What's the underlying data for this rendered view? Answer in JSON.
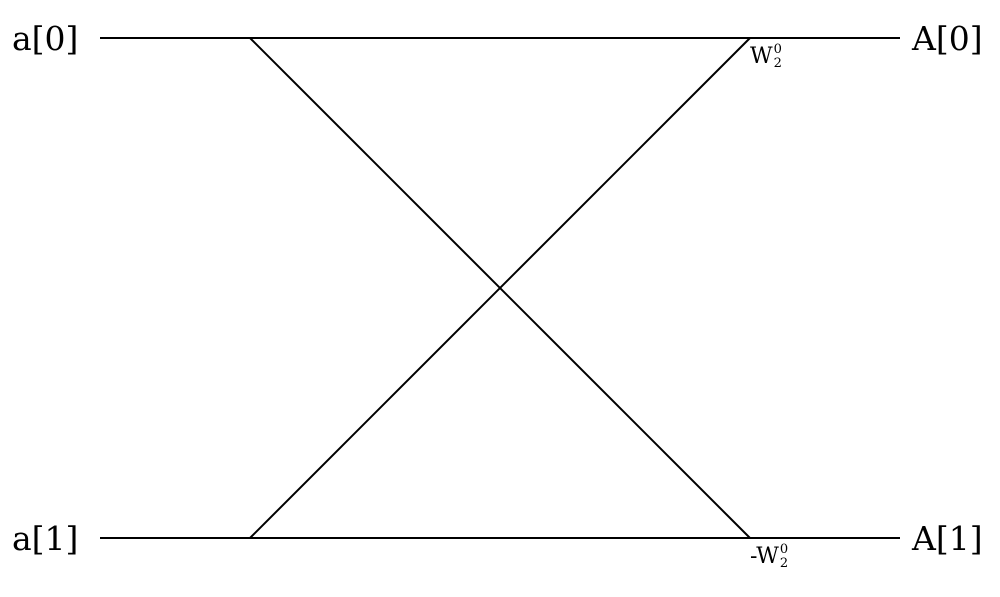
{
  "diagram": {
    "inputs": [
      "a[0]",
      "a[1]"
    ],
    "outputs": [
      "A[0]",
      "A[1]"
    ],
    "twiddles": [
      {
        "prefix": "",
        "base": "W",
        "superscript": "0",
        "subscript": "2"
      },
      {
        "prefix": "-",
        "base": "W",
        "superscript": "0",
        "subscript": "2"
      }
    ]
  },
  "colors": {
    "line": "#000000",
    "background": "#ffffff"
  }
}
